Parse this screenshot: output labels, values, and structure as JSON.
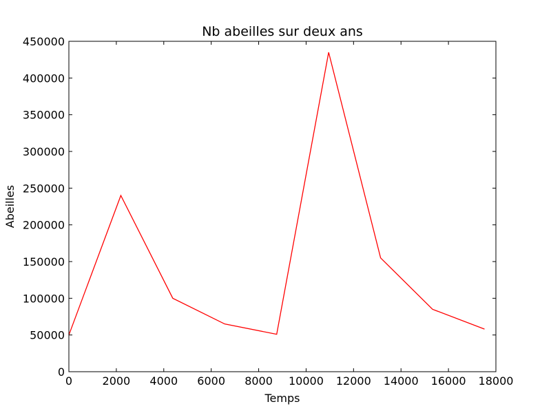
{
  "chart_data": {
    "type": "line",
    "title": "Nb abeilles sur deux ans",
    "xlabel": "Temps",
    "ylabel": "Abeilles",
    "xlim": [
      0,
      18000
    ],
    "ylim": [
      0,
      450000
    ],
    "grid": false,
    "legend": "none",
    "x_ticks": [
      {
        "value": 0,
        "label": "0"
      },
      {
        "value": 2000,
        "label": "2000"
      },
      {
        "value": 4000,
        "label": "4000"
      },
      {
        "value": 6000,
        "label": "6000"
      },
      {
        "value": 8000,
        "label": "8000"
      },
      {
        "value": 10000,
        "label": "10000"
      },
      {
        "value": 12000,
        "label": "12000"
      },
      {
        "value": 14000,
        "label": "14000"
      },
      {
        "value": 16000,
        "label": "16000"
      },
      {
        "value": 18000,
        "label": "18000"
      }
    ],
    "y_ticks": [
      {
        "value": 0,
        "label": "0"
      },
      {
        "value": 50000,
        "label": "50000"
      },
      {
        "value": 100000,
        "label": "100000"
      },
      {
        "value": 150000,
        "label": "150000"
      },
      {
        "value": 200000,
        "label": "200000"
      },
      {
        "value": 250000,
        "label": "250000"
      },
      {
        "value": 300000,
        "label": "300000"
      },
      {
        "value": 350000,
        "label": "350000"
      },
      {
        "value": 400000,
        "label": "400000"
      },
      {
        "value": 450000,
        "label": "450000"
      }
    ],
    "series": [
      {
        "color": "#ff0000",
        "x": [
          0,
          2190,
          4380,
          6570,
          8760,
          10950,
          13140,
          15330,
          17520
        ],
        "y": [
          50000,
          240000,
          100000,
          65000,
          51000,
          435000,
          155000,
          85000,
          58000
        ]
      }
    ]
  }
}
